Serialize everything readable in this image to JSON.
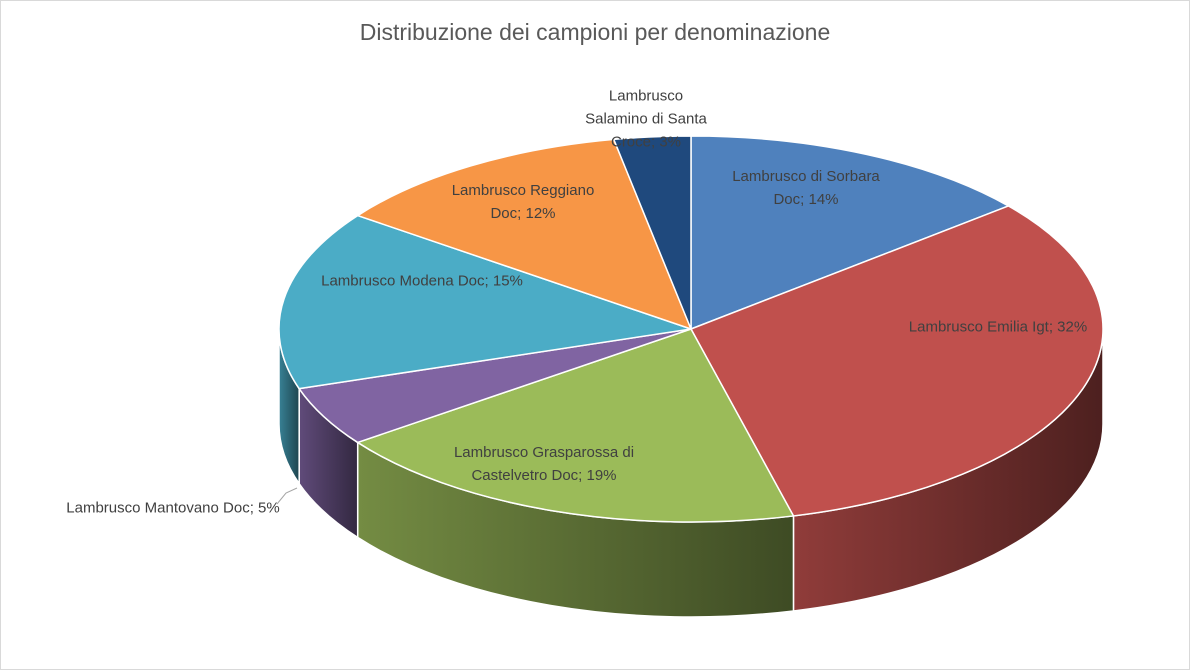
{
  "chart_data": {
    "type": "pie3d",
    "title": "Distribuzione dei campioni per denominazione",
    "values": [
      14,
      32,
      19,
      5,
      15,
      12,
      3
    ],
    "value_labels": [
      "Lambrusco di Sorbara Doc; 14%",
      "Lambrusco Emilia Igt; 32%",
      "Lambrusco Grasparossa di Castelvetro Doc; 19%",
      "Lambrusco Mantovano Doc; 5%",
      "Lambrusco Modena Doc; 15%",
      "Lambrusco Reggiano Doc; 12%",
      "Lambrusco Salamino di Santa Croce; 3%"
    ],
    "colors": [
      "#4f81bd",
      "#c0504d",
      "#9bbb59",
      "#8064a2",
      "#4bacc6",
      "#f79646",
      "#1f497d"
    ]
  }
}
